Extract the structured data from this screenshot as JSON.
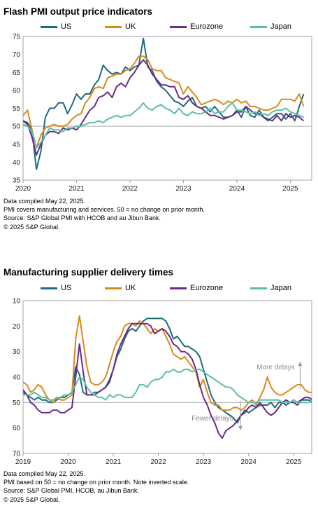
{
  "colors": {
    "US": "#1b6c7e",
    "UK": "#d9891c",
    "Eurozone": "#6a2a86",
    "Japan": "#5bbea3",
    "axis": "#8c8c8c",
    "ref": "#b0b0b0"
  },
  "chart1": {
    "title": "Flash PMI output price indicators",
    "notes": [
      "Data compiled May 22, 2025.",
      "PMI covers manufacturing and services. 50 = no change on prior month.",
      "Source: S&P Global PMI with HCOB and au Jibun Bank.",
      "© 2025 S&P Global."
    ]
  },
  "chart2": {
    "title": "Manufacturing supplier delivery times",
    "notes": [
      "Data compiled May 22, 2025.",
      "PMI based on 50 = no change on prior month. Note inverted scale.",
      "Source: S&P Global PMI, HCOB, au Jibun Bank.",
      "© 2025 S&P Global."
    ]
  },
  "chart_data": [
    {
      "type": "line",
      "title": "Flash PMI output price indicators",
      "xlabel": "",
      "ylabel": "",
      "x_range": [
        2020.0,
        2025.4
      ],
      "x_ticks": [
        "2020",
        "2021",
        "2022",
        "2023",
        "2024",
        "2025"
      ],
      "ylim": [
        35,
        75
      ],
      "y_ticks": [
        35,
        40,
        45,
        50,
        55,
        60,
        65,
        70,
        75
      ],
      "reference_line": 50,
      "grid": false,
      "legend": "top",
      "series": [
        {
          "name": "US",
          "x_start": 2020.0,
          "step_months": 1,
          "values": [
            51.5,
            51.0,
            49.0,
            38.0,
            43.0,
            52.5,
            55.0,
            55.0,
            56.5,
            56.5,
            53.5,
            56.0,
            59.0,
            57.5,
            59.0,
            59.0,
            61.5,
            63.0,
            67.0,
            65.5,
            64.5,
            65.0,
            64.5,
            66.5,
            65.5,
            66.5,
            67.0,
            74.5,
            66.5,
            65.5,
            62.5,
            61.0,
            60.0,
            58.5,
            57.0,
            56.5,
            55.5,
            57.0,
            58.0,
            55.5,
            55.0,
            55.5,
            54.0,
            55.5,
            54.0,
            52.5,
            52.5,
            53.0,
            54.5,
            52.5,
            55.5,
            53.0,
            52.5,
            54.5,
            52.5,
            51.5,
            52.5,
            53.5,
            53.5,
            52.0,
            53.5,
            51.5,
            55.5,
            59.0
          ]
        },
        {
          "name": "UK",
          "x_start": 2020.0,
          "step_months": 1,
          "values": [
            53.0,
            54.5,
            49.0,
            44.0,
            47.5,
            49.5,
            50.0,
            50.5,
            50.0,
            50.0,
            50.5,
            52.0,
            53.0,
            53.5,
            56.5,
            58.0,
            60.5,
            61.0,
            60.5,
            63.5,
            64.0,
            64.5,
            64.5,
            65.5,
            66.0,
            67.5,
            69.5,
            69.5,
            68.5,
            66.0,
            65.5,
            65.5,
            63.5,
            63.0,
            62.5,
            62.0,
            59.0,
            61.0,
            59.5,
            58.0,
            56.0,
            56.5,
            57.0,
            57.5,
            57.0,
            56.0,
            57.0,
            56.5,
            57.5,
            56.5,
            57.0,
            55.5,
            55.5,
            55.0,
            54.5,
            54.5,
            55.0,
            55.5,
            57.5,
            57.5,
            57.5,
            57.0,
            59.0,
            55.5
          ]
        },
        {
          "name": "Eurozone",
          "x_start": 2020.0,
          "step_months": 1,
          "values": [
            51.5,
            50.5,
            47.0,
            42.0,
            45.0,
            47.5,
            48.5,
            48.5,
            48.0,
            49.5,
            49.0,
            49.5,
            49.0,
            50.5,
            52.5,
            54.5,
            55.5,
            58.0,
            58.5,
            59.5,
            58.0,
            61.0,
            62.0,
            61.0,
            63.5,
            65.0,
            67.0,
            68.5,
            67.0,
            64.5,
            63.0,
            61.5,
            61.5,
            61.0,
            61.0,
            58.0,
            57.5,
            58.5,
            56.5,
            55.5,
            55.0,
            54.0,
            53.0,
            53.0,
            52.5,
            52.0,
            52.5,
            53.0,
            54.0,
            54.0,
            55.5,
            54.5,
            53.5,
            53.5,
            52.5,
            52.0,
            51.5,
            53.0,
            51.5,
            53.5,
            52.5,
            53.0,
            52.5,
            51.5
          ]
        },
        {
          "name": "Japan",
          "x_start": 2020.0,
          "step_months": 1,
          "values": [
            50.5,
            50.0,
            48.5,
            44.0,
            45.5,
            47.5,
            49.5,
            49.0,
            49.0,
            48.5,
            49.5,
            49.5,
            50.0,
            50.0,
            50.5,
            51.0,
            51.0,
            51.5,
            51.0,
            52.0,
            52.5,
            53.0,
            52.5,
            53.0,
            53.0,
            54.0,
            55.0,
            56.5,
            55.0,
            54.5,
            55.5,
            56.0,
            55.0,
            54.5,
            53.5,
            55.0,
            53.5,
            53.0,
            54.0,
            53.5,
            53.5,
            54.0,
            55.0,
            53.5,
            54.0,
            54.0,
            55.5,
            56.5,
            54.5,
            54.5,
            54.0,
            53.5,
            54.0,
            53.0,
            53.5,
            53.0,
            54.0,
            54.5,
            54.5,
            55.0,
            54.0,
            53.5,
            53.0,
            52.5
          ]
        }
      ]
    },
    {
      "type": "line",
      "title": "Manufacturing supplier delivery times",
      "xlabel": "",
      "ylabel": "",
      "x_range": [
        2019.0,
        2025.4
      ],
      "x_ticks": [
        "2019",
        "2020",
        "2021",
        "2022",
        "2023",
        "2024",
        "2025"
      ],
      "ylim": [
        70,
        10
      ],
      "y_inverted": true,
      "y_ticks": [
        10,
        20,
        30,
        40,
        50,
        60,
        70
      ],
      "reference_line": 50,
      "grid": false,
      "legend": "top",
      "annotations": [
        {
          "text": "More delays",
          "x": 2024.6,
          "y": 37,
          "arrow": "up"
        },
        {
          "text": "Fewer delays",
          "x": 2023.2,
          "y": 57,
          "arrow": "down"
        }
      ],
      "series": [
        {
          "name": "US",
          "x_start": 2019.0,
          "step_months": 1,
          "values": [
            46,
            47,
            48,
            49,
            48,
            49,
            49,
            50,
            50,
            49,
            48,
            48,
            47,
            46,
            36,
            39,
            46,
            47,
            47,
            46,
            46,
            45,
            44,
            41,
            37,
            32,
            29,
            25,
            22,
            21,
            22,
            20,
            18,
            17,
            17,
            17,
            17,
            17,
            18,
            21,
            25,
            24,
            26,
            28,
            28,
            29,
            30,
            32,
            37,
            42,
            47,
            50,
            52,
            53,
            54,
            55,
            56,
            58,
            55,
            53,
            54,
            53,
            52,
            51,
            51,
            51,
            50,
            52,
            50,
            50,
            51,
            50,
            49,
            50,
            49,
            49,
            49,
            50,
            49,
            49,
            48,
            47,
            48,
            47,
            46,
            45
          ]
        },
        {
          "name": "UK",
          "x_start": 2019.0,
          "step_months": 1,
          "values": [
            42,
            43,
            46,
            45,
            43,
            44,
            47,
            49,
            50,
            48,
            49,
            49,
            48,
            47,
            25,
            16,
            26,
            36,
            42,
            43,
            43,
            42,
            40,
            35,
            30,
            26,
            24,
            20,
            19,
            19,
            20,
            18,
            19,
            21,
            23,
            21,
            22,
            21,
            24,
            27,
            31,
            32,
            33,
            32,
            34,
            36,
            38,
            44,
            41,
            46,
            50,
            51,
            51,
            53,
            53,
            53,
            52,
            52,
            53,
            52,
            50,
            49,
            51,
            48,
            45,
            40,
            44,
            46,
            47,
            47,
            46,
            45,
            44,
            43,
            43,
            45,
            46,
            46,
            46,
            43
          ]
        },
        {
          "name": "Eurozone",
          "x_start": 2019.0,
          "step_months": 1,
          "values": [
            45,
            47,
            50,
            51,
            53,
            54,
            54,
            54,
            53,
            53,
            54,
            54,
            53,
            52,
            40,
            27,
            38,
            47,
            47,
            47,
            46,
            45,
            44,
            42,
            37,
            31,
            27,
            24,
            21,
            19,
            19,
            19,
            19,
            19,
            20,
            23,
            22,
            21,
            22,
            24,
            27,
            28,
            30,
            30,
            31,
            33,
            37,
            43,
            48,
            51,
            55,
            58,
            62,
            64,
            61,
            60,
            59,
            57,
            55,
            54,
            52,
            51,
            52,
            50,
            52,
            54,
            55,
            54,
            52,
            50,
            49,
            50,
            50,
            51,
            49,
            48,
            48,
            49,
            51,
            51
          ]
        },
        {
          "name": "Japan",
          "x_start": 2019.0,
          "step_months": 1,
          "values": [
            47,
            47,
            47,
            46,
            47,
            48,
            48,
            49,
            49,
            48,
            48,
            47,
            47,
            46,
            43,
            40,
            41,
            44,
            46,
            47,
            48,
            48,
            49,
            47,
            48,
            47,
            47,
            48,
            48,
            48,
            46,
            43,
            43,
            44,
            42,
            41,
            41,
            40,
            38,
            38,
            37,
            38,
            38,
            37,
            37,
            38,
            37,
            37,
            38,
            39,
            40,
            41,
            42,
            43,
            44,
            44,
            45,
            47,
            48,
            49,
            50,
            50,
            50,
            49,
            49,
            49,
            49,
            49,
            49,
            50,
            50,
            50,
            49,
            50,
            50,
            50,
            50,
            49,
            49,
            50,
            50,
            49,
            50,
            50,
            50,
            49
          ]
        }
      ]
    }
  ]
}
